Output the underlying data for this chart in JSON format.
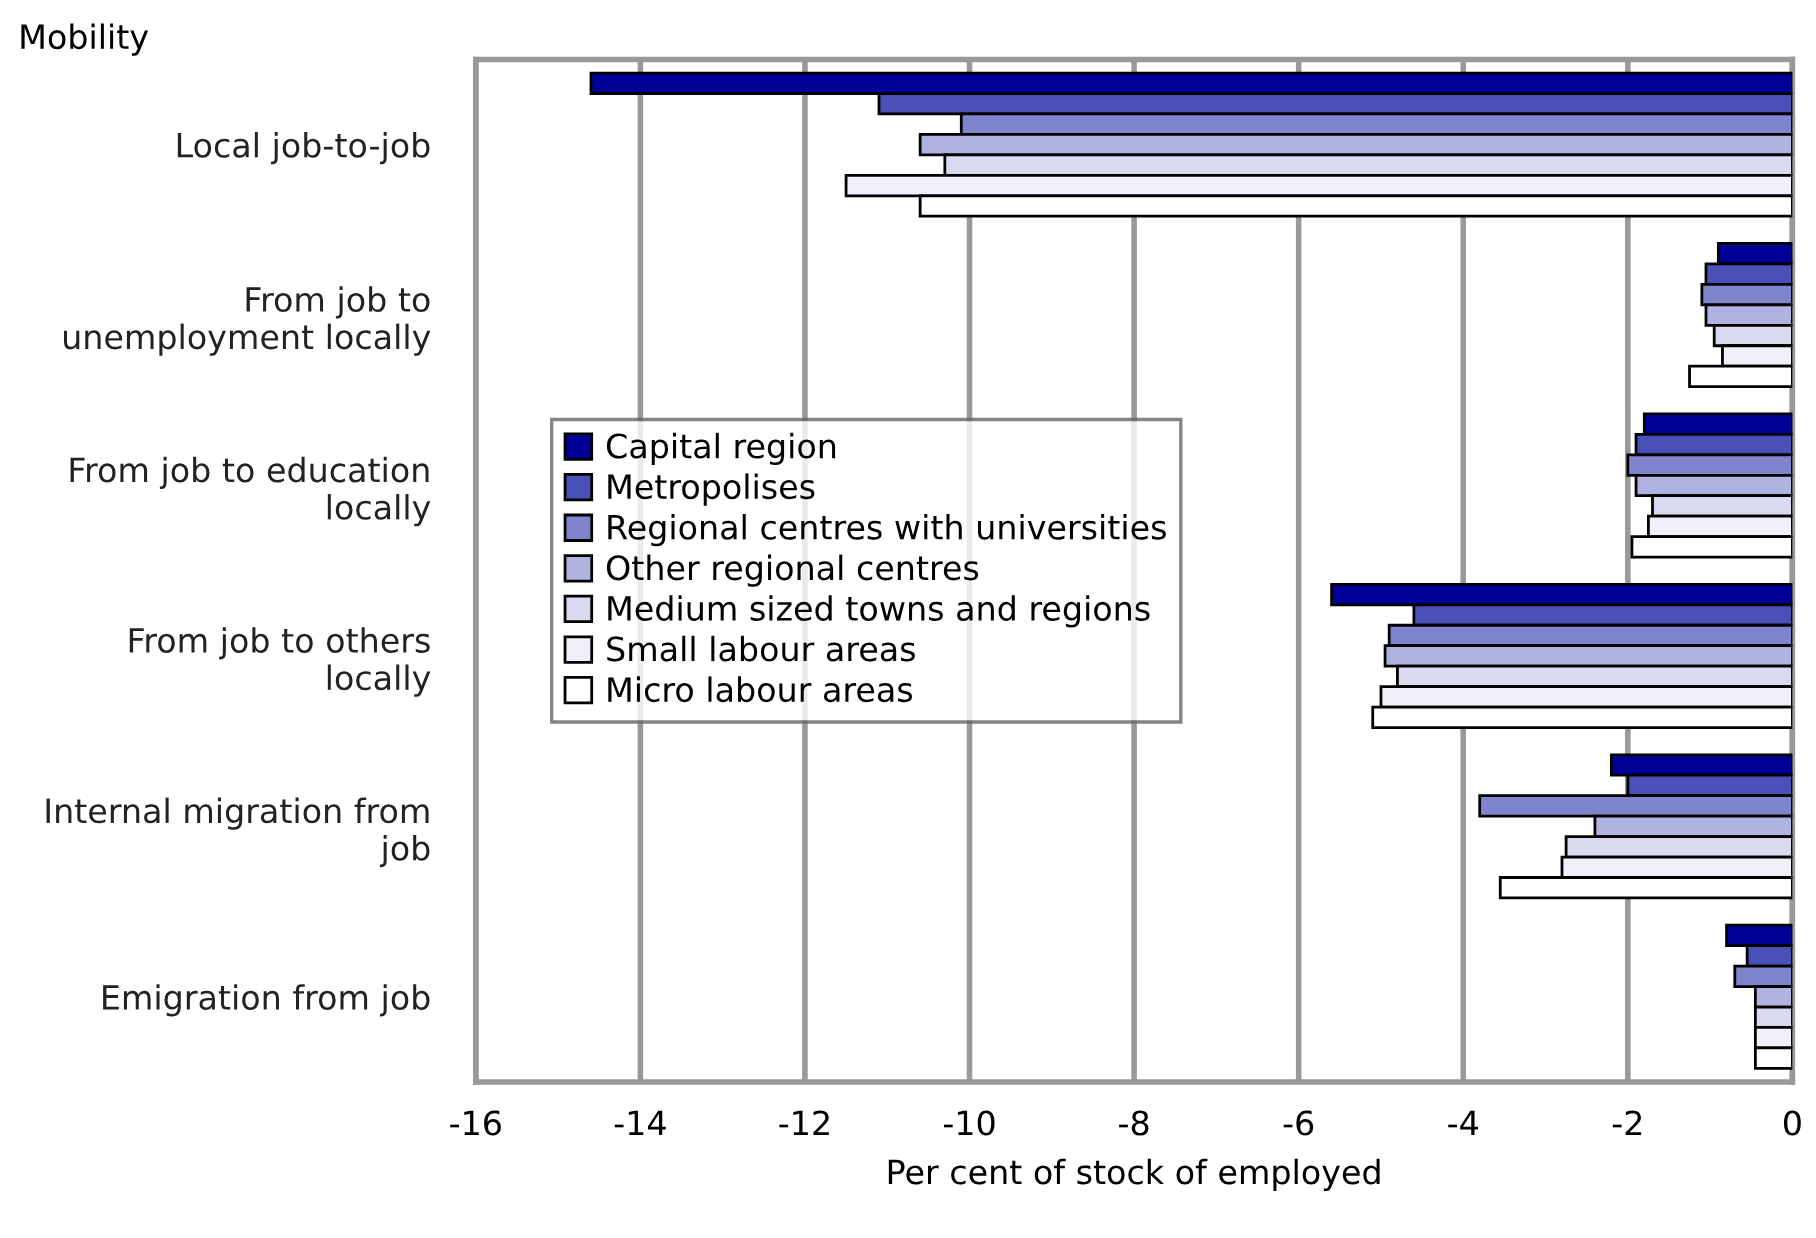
{
  "chart_data": {
    "type": "bar",
    "orientation": "horizontal",
    "ylabel": "Mobility",
    "xlabel": "Per cent of stock of employed",
    "categories": [
      "Local job-to-job",
      "From job to\nunemployment locally",
      "From job to education\nlocally",
      "From job to others\nlocally",
      "Internal migration from\njob",
      "Emigration from job"
    ],
    "series": [
      {
        "name": "Capital region",
        "color": "#000099",
        "values": [
          -14.6,
          -0.9,
          -1.8,
          -5.6,
          -2.2,
          -0.8
        ]
      },
      {
        "name": "Metropolises",
        "color": "#4b4fb8",
        "values": [
          -11.1,
          -1.05,
          -1.9,
          -4.6,
          -2.0,
          -0.55
        ]
      },
      {
        "name": "Regional centres with universities",
        "color": "#7f85cc",
        "values": [
          -10.1,
          -1.1,
          -2.0,
          -4.9,
          -3.8,
          -0.7
        ]
      },
      {
        "name": "Other regional centres",
        "color": "#b0b3e0",
        "values": [
          -10.6,
          -1.05,
          -1.9,
          -4.95,
          -2.4,
          -0.45
        ]
      },
      {
        "name": "Medium sized towns and regions",
        "color": "#d9daf0",
        "values": [
          -10.3,
          -0.95,
          -1.7,
          -4.8,
          -2.75,
          -0.45
        ]
      },
      {
        "name": "Small labour areas",
        "color": "#f0f0fa",
        "values": [
          -11.5,
          -0.85,
          -1.75,
          -5.0,
          -2.8,
          -0.45
        ]
      },
      {
        "name": "Micro labour areas",
        "color": "#ffffff",
        "values": [
          -10.6,
          -1.25,
          -1.95,
          -5.1,
          -3.55,
          -0.45
        ]
      }
    ],
    "xlim": [
      -16,
      0
    ],
    "xticks": [
      -16,
      -14,
      -12,
      -10,
      -8,
      -6,
      -4,
      -2,
      0
    ],
    "grid": "x",
    "legend": "center left"
  }
}
